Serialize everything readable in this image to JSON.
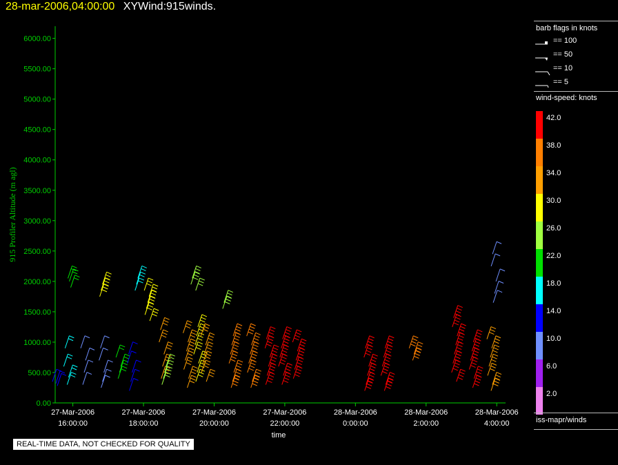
{
  "header": {
    "datetime": "28-mar-2006,04:00:00",
    "title": "XYWind:915winds."
  },
  "chart_data": {
    "type": "scatter",
    "ylabel": "915 Profiler Altitude (m agl)",
    "xlabel": "time",
    "ylim": [
      0,
      6200
    ],
    "yticks": [
      "0.00",
      "500.00",
      "1000.00",
      "1500.00",
      "2000.00",
      "2500.00",
      "3000.00",
      "3500.00",
      "4000.00",
      "4500.00",
      "5000.00",
      "5500.00",
      "6000.00"
    ],
    "xlim_hours": [
      15.5,
      28.25
    ],
    "xticks": [
      {
        "h": 16,
        "l1": "27-Mar-2006",
        "l2": "16:00:00"
      },
      {
        "h": 18,
        "l1": "27-Mar-2006",
        "l2": "18:00:00"
      },
      {
        "h": 20,
        "l1": "27-Mar-2006",
        "l2": "20:00:00"
      },
      {
        "h": 22,
        "l1": "27-Mar-2006",
        "l2": "22:00:00"
      },
      {
        "h": 24,
        "l1": "28-Mar-2006",
        "l2": "0:00:00"
      },
      {
        "h": 26,
        "l1": "28-Mar-2006",
        "l2": "2:00:00"
      },
      {
        "h": 28,
        "l1": "28-Mar-2006",
        "l2": "4:00:00"
      }
    ],
    "grid": false,
    "colors": {
      "axis": "#00d000",
      "ticklabel": "#ffffff"
    },
    "wind_profiles": [
      {
        "h": 15.5,
        "alts": [
          350,
          280,
          320
        ],
        "spd": 12
      },
      {
        "h": 15.8,
        "alts": [
          900,
          600,
          420,
          300
        ],
        "spd": 16
      },
      {
        "h": 15.9,
        "alts": [
          1900,
          2000,
          2050
        ],
        "spd": 22
      },
      {
        "h": 16.3,
        "alts": [
          900,
          700,
          500,
          300
        ],
        "spd": 11
      },
      {
        "h": 16.8,
        "alts": [
          900,
          700,
          500,
          350,
          250
        ],
        "spd": 8
      },
      {
        "h": 16.8,
        "alts": [
          1950,
          1850,
          1750
        ],
        "spd": 30
      },
      {
        "h": 17.3,
        "alts": [
          750,
          600,
          500,
          400
        ],
        "spd": 22
      },
      {
        "h": 17.6,
        "alts": [
          800,
          650,
          500,
          350,
          200
        ],
        "spd": 12
      },
      {
        "h": 17.8,
        "alts": [
          2050,
          1950,
          1850
        ],
        "spd": 18
      },
      {
        "h": 18.1,
        "alts": [
          1850,
          1750,
          1650,
          1550,
          1450,
          1350
        ],
        "spd": 30
      },
      {
        "h": 18.5,
        "alts": [
          1200,
          1000,
          800,
          600,
          400
        ],
        "spd": 34
      },
      {
        "h": 18.6,
        "alts": [
          600,
          500,
          400,
          300
        ],
        "spd": 24
      },
      {
        "h": 19.2,
        "alts": [
          1150,
          1000,
          850,
          700,
          550,
          400,
          250
        ],
        "spd": 34
      },
      {
        "h": 19.4,
        "alts": [
          2050,
          1950,
          1850
        ],
        "spd": 26
      },
      {
        "h": 19.5,
        "alts": [
          1250,
          1100,
          950,
          800,
          650,
          500,
          350
        ],
        "spd": 28
      },
      {
        "h": 19.7,
        "alts": [
          1100,
          950,
          800,
          650,
          500,
          350
        ],
        "spd": 32
      },
      {
        "h": 20.3,
        "alts": [
          1650,
          1550
        ],
        "spd": 26
      },
      {
        "h": 20.5,
        "alts": [
          1100,
          950,
          800,
          650,
          500,
          350,
          250
        ],
        "spd": 36
      },
      {
        "h": 21.0,
        "alts": [
          1100,
          950,
          800,
          650,
          500,
          350,
          250
        ],
        "spd": 38
      },
      {
        "h": 21.5,
        "alts": [
          1050,
          900,
          750,
          600,
          450,
          300
        ],
        "spd": 40
      },
      {
        "h": 21.9,
        "alts": [
          1050,
          900,
          750,
          600,
          450,
          300
        ],
        "spd": 42
      },
      {
        "h": 22.3,
        "alts": [
          1000,
          850,
          700,
          550,
          400
        ],
        "spd": 42
      },
      {
        "h": 24.3,
        "alts": [
          900,
          750,
          600,
          450,
          300,
          200
        ],
        "spd": 42
      },
      {
        "h": 24.8,
        "alts": [
          900,
          750,
          600,
          450,
          300,
          200
        ],
        "spd": 40
      },
      {
        "h": 25.6,
        "alts": [
          900,
          800,
          700
        ],
        "spd": 38
      },
      {
        "h": 26.8,
        "alts": [
          1400,
          1250,
          1100,
          950,
          800,
          650,
          500,
          350
        ],
        "spd": 42
      },
      {
        "h": 27.3,
        "alts": [
          1000,
          850,
          700,
          550,
          400,
          250
        ],
        "spd": 40
      },
      {
        "h": 27.8,
        "alts": [
          1050,
          900,
          750,
          600,
          450,
          300,
          200
        ],
        "spd": 32
      },
      {
        "h": 27.9,
        "alts": [
          2450,
          2250,
          2000,
          1800,
          1650
        ],
        "spd": 10
      }
    ]
  },
  "legend": {
    "flags_title": "barb flags in knots",
    "flags": [
      "== 100",
      "== 50",
      "== 10",
      "== 5"
    ],
    "speed_title": "wind-speed: knots",
    "scale": [
      {
        "label": "42.0",
        "color": "#ff0000"
      },
      {
        "label": "38.0",
        "color": "#ff7f00"
      },
      {
        "label": "34.0",
        "color": "#ff9f00"
      },
      {
        "label": "30.0",
        "color": "#ffff00"
      },
      {
        "label": "26.0",
        "color": "#a0ff40"
      },
      {
        "label": "22.0",
        "color": "#00e000"
      },
      {
        "label": "18.0",
        "color": "#00ffff"
      },
      {
        "label": "14.0",
        "color": "#0000ff"
      },
      {
        "label": "10.0",
        "color": "#6f8fff"
      },
      {
        "label": "6.0",
        "color": "#a020f0"
      },
      {
        "label": "2.0",
        "color": "#ee82ee"
      }
    ],
    "source": "iss-mapr/winds"
  },
  "disclaimer": "REAL-TIME DATA, NOT CHECKED FOR QUALITY"
}
